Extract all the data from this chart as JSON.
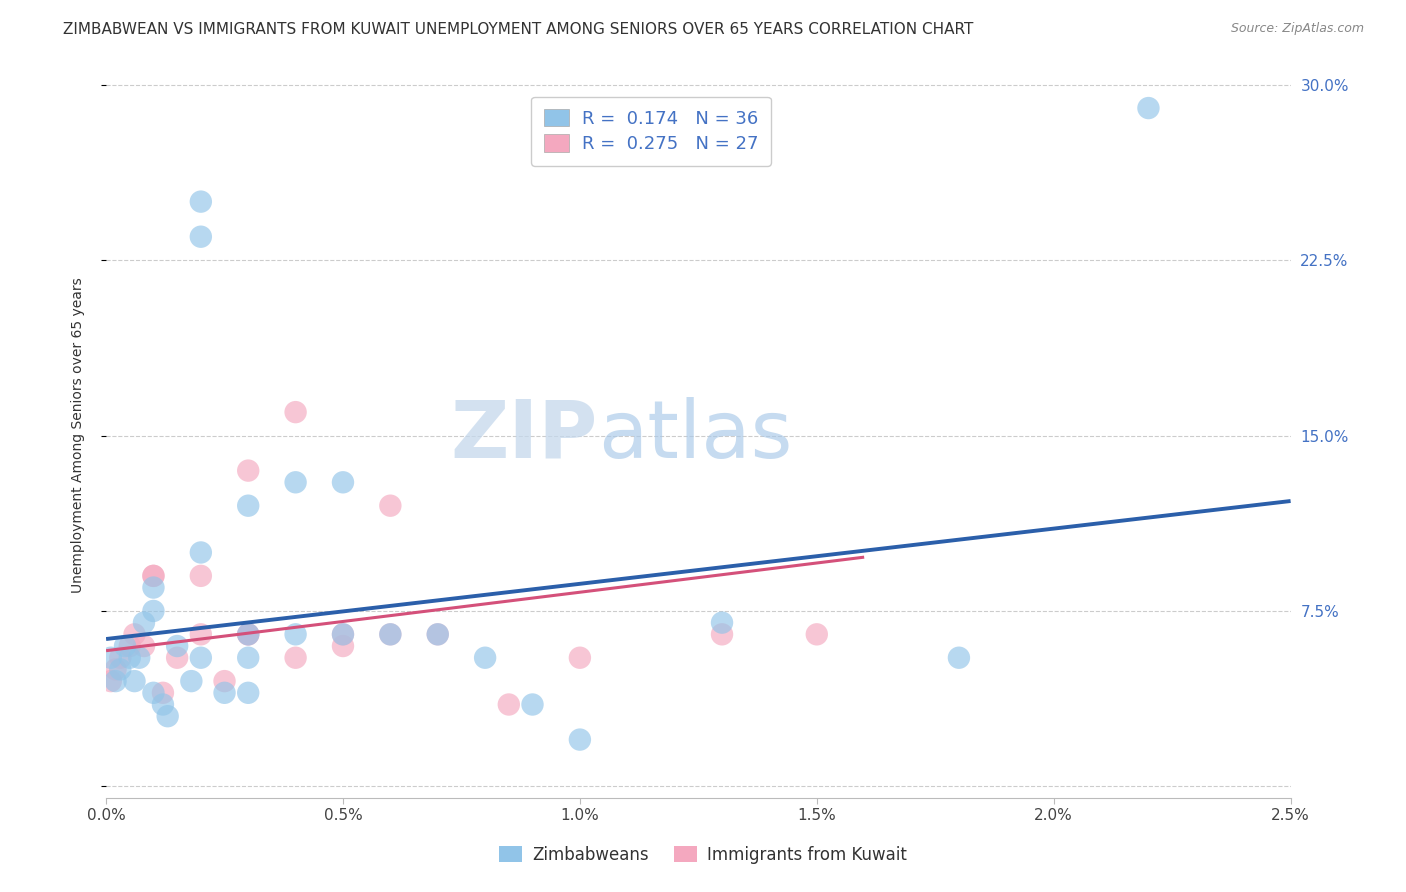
{
  "title": "ZIMBABWEAN VS IMMIGRANTS FROM KUWAIT UNEMPLOYMENT AMONG SENIORS OVER 65 YEARS CORRELATION CHART",
  "source": "Source: ZipAtlas.com",
  "ylabel": "Unemployment Among Seniors over 65 years",
  "xlabel_ticks": [
    "0.0%",
    "0.5%",
    "1.0%",
    "1.5%",
    "2.0%",
    "2.5%"
  ],
  "ylabel_ticks_right": [
    "30.0%",
    "22.5%",
    "15.0%",
    "7.5%",
    ""
  ],
  "xlim": [
    0.0,
    0.025
  ],
  "ylim": [
    -0.005,
    0.305
  ],
  "legend_r1": "0.174",
  "legend_n1": "36",
  "legend_r2": "0.275",
  "legend_n2": "27",
  "blue_color": "#91c4e8",
  "pink_color": "#f4a8bf",
  "blue_line_color": "#2b5faa",
  "pink_line_color": "#d4507a",
  "title_fontsize": 11,
  "axis_label_fontsize": 10,
  "tick_fontsize": 11,
  "blue_scatter_x": [
    0.0001,
    0.0002,
    0.0003,
    0.0004,
    0.0005,
    0.0006,
    0.0007,
    0.0008,
    0.001,
    0.001,
    0.001,
    0.0012,
    0.0013,
    0.0015,
    0.0018,
    0.002,
    0.002,
    0.002,
    0.002,
    0.0025,
    0.003,
    0.003,
    0.003,
    0.003,
    0.004,
    0.004,
    0.005,
    0.005,
    0.006,
    0.007,
    0.008,
    0.009,
    0.01,
    0.013,
    0.018,
    0.022
  ],
  "blue_scatter_y": [
    0.055,
    0.045,
    0.05,
    0.06,
    0.055,
    0.045,
    0.055,
    0.07,
    0.075,
    0.085,
    0.04,
    0.035,
    0.03,
    0.06,
    0.045,
    0.25,
    0.235,
    0.1,
    0.055,
    0.04,
    0.12,
    0.065,
    0.055,
    0.04,
    0.13,
    0.065,
    0.13,
    0.065,
    0.065,
    0.065,
    0.055,
    0.035,
    0.02,
    0.07,
    0.055,
    0.29
  ],
  "pink_scatter_x": [
    0.0001,
    0.0002,
    0.0003,
    0.0005,
    0.0006,
    0.0008,
    0.001,
    0.001,
    0.0012,
    0.0015,
    0.002,
    0.002,
    0.0025,
    0.003,
    0.003,
    0.003,
    0.004,
    0.004,
    0.005,
    0.005,
    0.006,
    0.006,
    0.007,
    0.0085,
    0.01,
    0.013,
    0.015
  ],
  "pink_scatter_y": [
    0.045,
    0.05,
    0.055,
    0.06,
    0.065,
    0.06,
    0.09,
    0.09,
    0.04,
    0.055,
    0.09,
    0.065,
    0.045,
    0.065,
    0.135,
    0.065,
    0.16,
    0.055,
    0.065,
    0.06,
    0.12,
    0.065,
    0.065,
    0.035,
    0.055,
    0.065,
    0.065
  ],
  "blue_trendline_x": [
    0.0,
    0.025
  ],
  "blue_trendline_y": [
    0.063,
    0.122
  ],
  "pink_trendline_x": [
    0.0,
    0.016
  ],
  "pink_trendline_y": [
    0.058,
    0.098
  ],
  "watermark_zip": "ZIP",
  "watermark_atlas": "atlas",
  "legend_label1": "Zimbabweans",
  "legend_label2": "Immigrants from Kuwait"
}
